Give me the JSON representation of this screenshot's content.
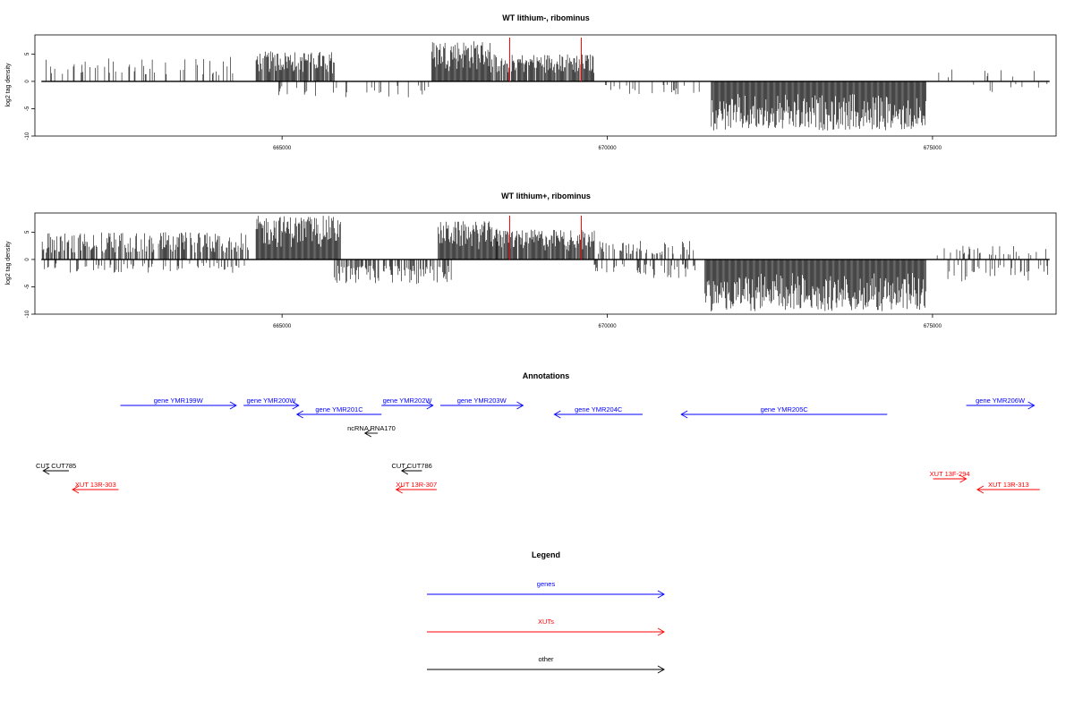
{
  "chart_data": [
    {
      "type": "bar",
      "title": "WT lithium-, ribominus",
      "ylabel": "log2 tag density",
      "xlabel": "",
      "xlim": [
        661200,
        676900
      ],
      "ylim": [
        -10,
        8.5
      ],
      "xticks": [
        "665000",
        "670000",
        "675000"
      ],
      "yticks": [
        "-10",
        "-5",
        "0",
        "5"
      ],
      "grid": false,
      "series": [
        {
          "values_description": "",
          "segments": [
            {
              "x0": 661300,
              "x1": 664300,
              "sign": 1,
              "max": 4.5,
              "density": 0.25
            },
            {
              "x0": 664600,
              "x1": 665800,
              "sign": 1,
              "max": 5.5,
              "density": 0.9
            },
            {
              "x0": 664900,
              "x1": 667500,
              "sign": -1,
              "max": 3.0,
              "density": 0.15
            },
            {
              "x0": 667300,
              "x1": 668200,
              "sign": 1,
              "max": 7.5,
              "density": 1.0
            },
            {
              "x0": 668200,
              "x1": 669800,
              "sign": 1,
              "max": 5.0,
              "density": 0.9
            },
            {
              "x0": 669900,
              "x1": 671500,
              "sign": -1,
              "max": 2.5,
              "density": 0.12
            },
            {
              "x0": 671600,
              "x1": 674900,
              "sign": -1,
              "max": 9.0,
              "density": 1.0
            },
            {
              "x0": 675000,
              "x1": 676800,
              "sign": 1,
              "max": 3.0,
              "density": 0.08
            },
            {
              "x0": 675500,
              "x1": 676800,
              "sign": -1,
              "max": 2.0,
              "density": 0.08
            }
          ]
        }
      ],
      "markers": [
        668500,
        669600
      ]
    },
    {
      "type": "bar",
      "title": "WT lithium+, ribominus",
      "ylabel": "log2 tag density",
      "xlabel": "",
      "xlim": [
        661200,
        676900
      ],
      "ylim": [
        -10,
        8.5
      ],
      "xticks": [
        "665000",
        "670000",
        "675000"
      ],
      "yticks": [
        "-10",
        "-5",
        "0",
        "5"
      ],
      "grid": false,
      "series": [
        {
          "segments": [
            {
              "x0": 661300,
              "x1": 664500,
              "sign": 1,
              "max": 5.0,
              "density": 0.7
            },
            {
              "x0": 661300,
              "x1": 664500,
              "sign": -1,
              "max": 2.5,
              "density": 0.25
            },
            {
              "x0": 664600,
              "x1": 665900,
              "sign": 1,
              "max": 8.0,
              "density": 1.0
            },
            {
              "x0": 665800,
              "x1": 667600,
              "sign": -1,
              "max": 4.5,
              "density": 0.6
            },
            {
              "x0": 667400,
              "x1": 668300,
              "sign": 1,
              "max": 7.0,
              "density": 1.0
            },
            {
              "x0": 668300,
              "x1": 669800,
              "sign": 1,
              "max": 5.5,
              "density": 0.95
            },
            {
              "x0": 669800,
              "x1": 671400,
              "sign": 1,
              "max": 3.5,
              "density": 0.3
            },
            {
              "x0": 669800,
              "x1": 671400,
              "sign": -1,
              "max": 3.5,
              "density": 0.3
            },
            {
              "x0": 671500,
              "x1": 674900,
              "sign": -1,
              "max": 9.5,
              "density": 1.0
            },
            {
              "x0": 675000,
              "x1": 676800,
              "sign": 1,
              "max": 2.5,
              "density": 0.2
            },
            {
              "x0": 675200,
              "x1": 676800,
              "sign": -1,
              "max": 4.0,
              "density": 0.25
            }
          ]
        }
      ],
      "markers": [
        668500,
        669600
      ]
    }
  ],
  "annotations": {
    "title": "Annotations",
    "features": [
      {
        "label": "gene YMR199W",
        "start": 662100,
        "end": 665250,
        "strand": "+",
        "row": 0,
        "color": "#0000ff"
      },
      {
        "label": "gene YMR200W",
        "start": 665450,
        "end": 666950,
        "strand": "+",
        "row": 0,
        "color": "#0000ff"
      },
      {
        "label": "gene YMR201C",
        "start": 666900,
        "end": 669200,
        "strand": "-",
        "row": 1,
        "color": "#0000ff"
      },
      {
        "label": "gene YMR202W",
        "start": 669200,
        "end": 670600,
        "strand": "+",
        "row": 0,
        "color": "#0000ff"
      },
      {
        "label": "gene YMR203W",
        "start": 670800,
        "end": 673050,
        "strand": "+",
        "row": 0,
        "color": "#0000ff"
      },
      {
        "label": "gene YMR204C",
        "start": 673900,
        "end": 676300,
        "strand": "-",
        "row": 1,
        "color": "#0000ff"
      },
      {
        "label": "gene YMR205C",
        "start": 677350,
        "end": 682950,
        "strand": "-",
        "row": 1,
        "color": "#0000ff"
      },
      {
        "label": "gene YMR206W",
        "start": 685100,
        "end": 686950,
        "strand": "+",
        "row": 0,
        "color": "#0000ff"
      },
      {
        "label": "ncRNA RNA170",
        "start": 668750,
        "end": 669100,
        "strand": "-",
        "row": 2,
        "color": "#000000"
      },
      {
        "label": "CUT CUT785",
        "start": 660000,
        "end": 660700,
        "strand": "-",
        "row": 3,
        "color": "#000000"
      },
      {
        "label": "CUT CUT786",
        "start": 669750,
        "end": 670300,
        "strand": "-",
        "row": 3,
        "color": "#000000"
      },
      {
        "label": "XUT 13R-303",
        "start": 660800,
        "end": 662050,
        "strand": "-",
        "row": 4,
        "color": "#ff0000"
      },
      {
        "label": "XUT 13R-307",
        "start": 669600,
        "end": 670700,
        "strand": "-",
        "row": 4,
        "color": "#ff0000"
      },
      {
        "label": "XUT 13F-294",
        "start": 684200,
        "end": 685100,
        "strand": "+",
        "row": 3.5,
        "color": "#ff0000"
      },
      {
        "label": "XUT 13R-313",
        "start": 685400,
        "end": 687100,
        "strand": "-",
        "row": 4,
        "color": "#ff0000"
      }
    ]
  },
  "legend": {
    "title": "Legend",
    "items": [
      {
        "label": "genes",
        "color": "#0000ff"
      },
      {
        "label": "XUTs",
        "color": "#ff0000"
      },
      {
        "label": "other",
        "color": "#000000"
      }
    ]
  }
}
